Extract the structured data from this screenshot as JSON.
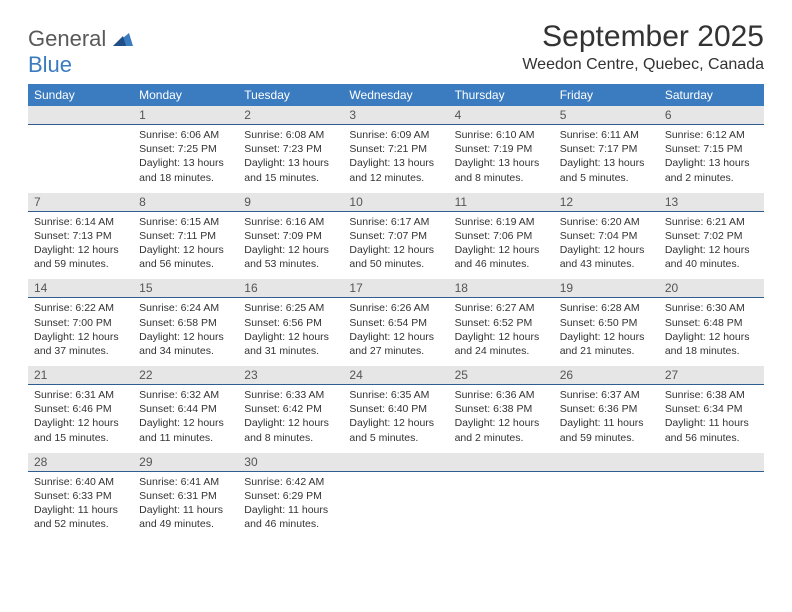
{
  "logo": {
    "text1": "General",
    "text2": "Blue"
  },
  "title": "September 2025",
  "location": "Weedon Centre, Quebec, Canada",
  "header_bg": "#3b7bbf",
  "header_fg": "#ffffff",
  "daynum_bg": "#e6e6e6",
  "daynum_border": "#2f5d8f",
  "dayNames": [
    "Sunday",
    "Monday",
    "Tuesday",
    "Wednesday",
    "Thursday",
    "Friday",
    "Saturday"
  ],
  "weeks": [
    {
      "nums": [
        "",
        "1",
        "2",
        "3",
        "4",
        "5",
        "6"
      ],
      "cells": [
        null,
        {
          "sr": "6:06 AM",
          "ss": "7:25 PM",
          "dl": "13 hours and 18 minutes."
        },
        {
          "sr": "6:08 AM",
          "ss": "7:23 PM",
          "dl": "13 hours and 15 minutes."
        },
        {
          "sr": "6:09 AM",
          "ss": "7:21 PM",
          "dl": "13 hours and 12 minutes."
        },
        {
          "sr": "6:10 AM",
          "ss": "7:19 PM",
          "dl": "13 hours and 8 minutes."
        },
        {
          "sr": "6:11 AM",
          "ss": "7:17 PM",
          "dl": "13 hours and 5 minutes."
        },
        {
          "sr": "6:12 AM",
          "ss": "7:15 PM",
          "dl": "13 hours and 2 minutes."
        }
      ]
    },
    {
      "nums": [
        "7",
        "8",
        "9",
        "10",
        "11",
        "12",
        "13"
      ],
      "cells": [
        {
          "sr": "6:14 AM",
          "ss": "7:13 PM",
          "dl": "12 hours and 59 minutes."
        },
        {
          "sr": "6:15 AM",
          "ss": "7:11 PM",
          "dl": "12 hours and 56 minutes."
        },
        {
          "sr": "6:16 AM",
          "ss": "7:09 PM",
          "dl": "12 hours and 53 minutes."
        },
        {
          "sr": "6:17 AM",
          "ss": "7:07 PM",
          "dl": "12 hours and 50 minutes."
        },
        {
          "sr": "6:19 AM",
          "ss": "7:06 PM",
          "dl": "12 hours and 46 minutes."
        },
        {
          "sr": "6:20 AM",
          "ss": "7:04 PM",
          "dl": "12 hours and 43 minutes."
        },
        {
          "sr": "6:21 AM",
          "ss": "7:02 PM",
          "dl": "12 hours and 40 minutes."
        }
      ]
    },
    {
      "nums": [
        "14",
        "15",
        "16",
        "17",
        "18",
        "19",
        "20"
      ],
      "cells": [
        {
          "sr": "6:22 AM",
          "ss": "7:00 PM",
          "dl": "12 hours and 37 minutes."
        },
        {
          "sr": "6:24 AM",
          "ss": "6:58 PM",
          "dl": "12 hours and 34 minutes."
        },
        {
          "sr": "6:25 AM",
          "ss": "6:56 PM",
          "dl": "12 hours and 31 minutes."
        },
        {
          "sr": "6:26 AM",
          "ss": "6:54 PM",
          "dl": "12 hours and 27 minutes."
        },
        {
          "sr": "6:27 AM",
          "ss": "6:52 PM",
          "dl": "12 hours and 24 minutes."
        },
        {
          "sr": "6:28 AM",
          "ss": "6:50 PM",
          "dl": "12 hours and 21 minutes."
        },
        {
          "sr": "6:30 AM",
          "ss": "6:48 PM",
          "dl": "12 hours and 18 minutes."
        }
      ]
    },
    {
      "nums": [
        "21",
        "22",
        "23",
        "24",
        "25",
        "26",
        "27"
      ],
      "cells": [
        {
          "sr": "6:31 AM",
          "ss": "6:46 PM",
          "dl": "12 hours and 15 minutes."
        },
        {
          "sr": "6:32 AM",
          "ss": "6:44 PM",
          "dl": "12 hours and 11 minutes."
        },
        {
          "sr": "6:33 AM",
          "ss": "6:42 PM",
          "dl": "12 hours and 8 minutes."
        },
        {
          "sr": "6:35 AM",
          "ss": "6:40 PM",
          "dl": "12 hours and 5 minutes."
        },
        {
          "sr": "6:36 AM",
          "ss": "6:38 PM",
          "dl": "12 hours and 2 minutes."
        },
        {
          "sr": "6:37 AM",
          "ss": "6:36 PM",
          "dl": "11 hours and 59 minutes."
        },
        {
          "sr": "6:38 AM",
          "ss": "6:34 PM",
          "dl": "11 hours and 56 minutes."
        }
      ]
    },
    {
      "nums": [
        "28",
        "29",
        "30",
        "",
        "",
        "",
        ""
      ],
      "cells": [
        {
          "sr": "6:40 AM",
          "ss": "6:33 PM",
          "dl": "11 hours and 52 minutes."
        },
        {
          "sr": "6:41 AM",
          "ss": "6:31 PM",
          "dl": "11 hours and 49 minutes."
        },
        {
          "sr": "6:42 AM",
          "ss": "6:29 PM",
          "dl": "11 hours and 46 minutes."
        },
        null,
        null,
        null,
        null
      ]
    }
  ],
  "labels": {
    "sunrise": "Sunrise:",
    "sunset": "Sunset:",
    "daylight": "Daylight:"
  }
}
